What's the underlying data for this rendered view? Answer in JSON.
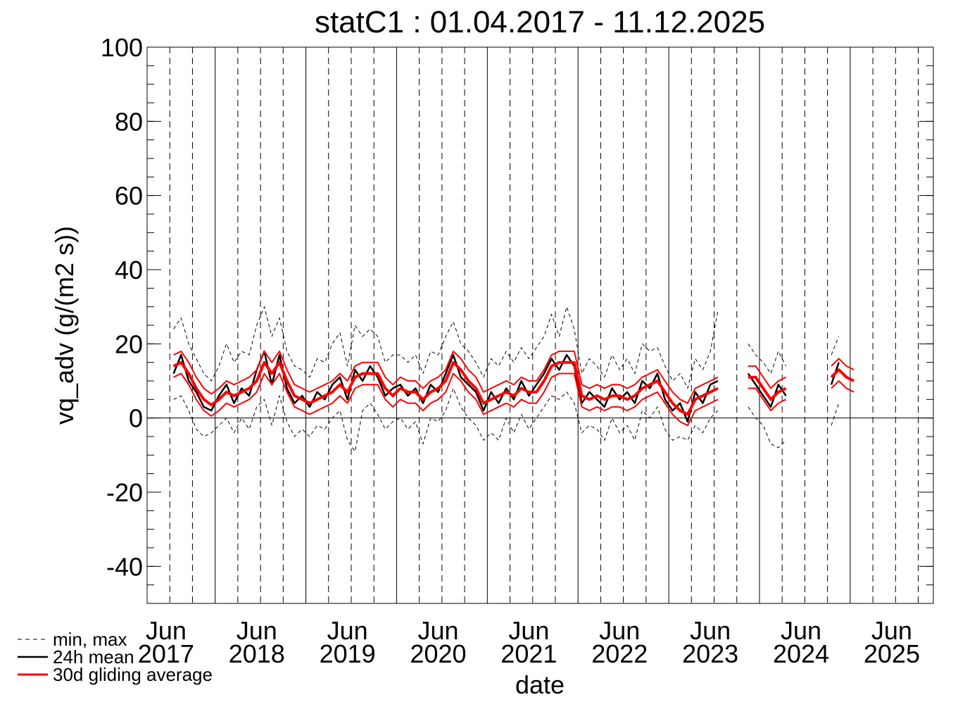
{
  "chart_data": {
    "type": "line",
    "title": "statC1 : 01.04.2017 - 11.12.2025",
    "xlabel": "date",
    "ylabel": "vq_adv (g/(m2 s))",
    "xlim": [
      "2017-04",
      "2025-12"
    ],
    "ylim": [
      -50,
      100
    ],
    "yticks": [
      -40,
      -20,
      0,
      20,
      40,
      60,
      80,
      100
    ],
    "xticks": [
      {
        "value": "2017-06",
        "label": "Jun 2017"
      },
      {
        "value": "2018-06",
        "label": "Jun 2018"
      },
      {
        "value": "2019-06",
        "label": "Jun 2019"
      },
      {
        "value": "2020-06",
        "label": "Jun 2020"
      },
      {
        "value": "2021-06",
        "label": "Jun 2021"
      },
      {
        "value": "2022-06",
        "label": "Jun 2022"
      },
      {
        "value": "2023-06",
        "label": "Jun 2023"
      },
      {
        "value": "2024-06",
        "label": "Jun 2024"
      },
      {
        "value": "2025-06",
        "label": "Jun 2025"
      }
    ],
    "grid": true,
    "legend": "bottom-left",
    "x": [
      "2017-04",
      "2017-05",
      "2017-06",
      "2017-07",
      "2017-08",
      "2017-09",
      "2017-10",
      "2017-11",
      "2017-12",
      "2018-01",
      "2018-02",
      "2018-03",
      "2018-04",
      "2018-05",
      "2018-06",
      "2018-07",
      "2018-08",
      "2018-09",
      "2018-10",
      "2018-11",
      "2018-12",
      "2019-01",
      "2019-02",
      "2019-03",
      "2019-04",
      "2019-05",
      "2019-06",
      "2019-07",
      "2019-08",
      "2019-09",
      "2019-10",
      "2019-11",
      "2019-12",
      "2020-01",
      "2020-02",
      "2020-03",
      "2020-04",
      "2020-05",
      "2020-06",
      "2020-07",
      "2020-08",
      "2020-09",
      "2020-10",
      "2020-11",
      "2020-12",
      "2021-01",
      "2021-02",
      "2021-03",
      "2021-04",
      "2021-05",
      "2021-06",
      "2021-07",
      "2021-08",
      "2021-09",
      "2021-10",
      "2021-11",
      "2021-12",
      "2022-01",
      "2022-02",
      "2022-03",
      "2022-04",
      "2022-05",
      "2022-06",
      "2022-07",
      "2022-08",
      "2022-09",
      "2022-10",
      "2022-11",
      "2022-12",
      "2023-01",
      "2023-02",
      "2023-03",
      "2023-04",
      "2023-05",
      "2023-06",
      "2023-07",
      "2023-08",
      "2023-09",
      "2023-10",
      "2023-11",
      "2023-12",
      "2024-01",
      "2024-02",
      "2024-03",
      "2024-04",
      "2024-05",
      "2024-06",
      "2024-07",
      "2024-08",
      "2024-09",
      "2024-10",
      "2024-11",
      "2024-12",
      "2025-01",
      "2025-02",
      "2025-03",
      "2025-04",
      "2025-05",
      "2025-06",
      "2025-07",
      "2025-08",
      "2025-09",
      "2025-10",
      "2025-11",
      "2025-12"
    ],
    "series": [
      {
        "name": "min, max",
        "color": "#000000",
        "style": "dashed",
        "values": [
          null,
          null,
          null,
          5,
          6,
          2,
          -3,
          -5,
          -4,
          -2,
          0,
          -4,
          0,
          -3,
          3,
          5,
          -2,
          6,
          -1,
          -5,
          -3,
          -5,
          -2,
          -3,
          0,
          2,
          -6,
          -9,
          2,
          4,
          1,
          -3,
          -1,
          0,
          -3,
          -1,
          -7,
          0,
          -1,
          2,
          8,
          3,
          0,
          -2,
          -6,
          -4,
          -6,
          0,
          -4,
          1,
          -3,
          0,
          3,
          6,
          5,
          7,
          4,
          -4,
          -2,
          -3,
          -6,
          0,
          -4,
          -2,
          -6,
          2,
          0,
          3,
          -3,
          -6,
          -5,
          -6,
          -2,
          -4,
          0,
          2,
          null,
          null,
          null,
          3,
          0,
          -2,
          -7,
          -8,
          -6,
          null,
          null,
          null,
          null,
          null,
          -2,
          4,
          null,
          null,
          null,
          null,
          null,
          null,
          null,
          null,
          null,
          null,
          null,
          null,
          null
        ]
      },
      {
        "color": "#000000",
        "style": "dashed",
        "values": [
          null,
          null,
          null,
          24,
          27,
          20,
          16,
          12,
          10,
          14,
          20,
          15,
          18,
          17,
          25,
          30,
          22,
          27,
          18,
          14,
          13,
          11,
          16,
          15,
          20,
          23,
          14,
          25,
          22,
          24,
          22,
          15,
          17,
          17,
          15,
          17,
          12,
          18,
          17,
          22,
          26,
          20,
          18,
          15,
          11,
          16,
          14,
          18,
          15,
          19,
          16,
          19,
          22,
          28,
          22,
          30,
          24,
          12,
          16,
          14,
          11,
          17,
          13,
          16,
          12,
          20,
          18,
          19,
          14,
          10,
          12,
          8,
          16,
          13,
          18,
          29,
          null,
          null,
          null,
          20,
          17,
          15,
          12,
          18,
          14,
          null,
          null,
          null,
          null,
          null,
          17,
          22,
          null,
          null,
          null,
          null,
          null,
          null,
          null,
          null,
          null,
          null,
          null,
          null,
          null
        ]
      },
      {
        "name": "24h mean",
        "color": "#000000",
        "style": "solid",
        "values": [
          null,
          null,
          null,
          12,
          17,
          10,
          7,
          3,
          2,
          6,
          9,
          4,
          8,
          6,
          13,
          18,
          9,
          17,
          8,
          4,
          6,
          3,
          7,
          5,
          9,
          11,
          5,
          13,
          10,
          14,
          11,
          6,
          8,
          9,
          6,
          8,
          4,
          9,
          7,
          12,
          17,
          11,
          9,
          7,
          2,
          7,
          4,
          8,
          5,
          10,
          6,
          9,
          12,
          16,
          13,
          17,
          14,
          4,
          7,
          5,
          3,
          8,
          5,
          7,
          4,
          10,
          8,
          12,
          5,
          2,
          4,
          -1,
          7,
          4,
          9,
          10,
          null,
          null,
          null,
          12,
          9,
          6,
          3,
          9,
          6,
          null,
          null,
          null,
          null,
          null,
          9,
          15,
          null,
          null,
          null,
          null,
          null,
          null,
          null,
          null,
          null,
          null,
          null,
          null,
          null
        ]
      },
      {
        "color": "#ff0000",
        "style": "band",
        "values": [
          null,
          null,
          null,
          17,
          18,
          15,
          11,
          8,
          6.5,
          8,
          10,
          9,
          10,
          11,
          13,
          18,
          15,
          18,
          13,
          9,
          8,
          7,
          8,
          9,
          10,
          12,
          10,
          14,
          15,
          15,
          15,
          11,
          9,
          11,
          10,
          10,
          8,
          10,
          11,
          13,
          18,
          16,
          13,
          11,
          7,
          8,
          9,
          10,
          9,
          11,
          10,
          10,
          13,
          17,
          18,
          18,
          18,
          9,
          8,
          9,
          8,
          9,
          9,
          8,
          9,
          11,
          12,
          13,
          10,
          7,
          5,
          4,
          8,
          9,
          10,
          11,
          null,
          null,
          null,
          14,
          14,
          11,
          8,
          10,
          11,
          null,
          null,
          null,
          null,
          null,
          14,
          16,
          14,
          13,
          null,
          null,
          null,
          null,
          null,
          null,
          null,
          null,
          null,
          null,
          null
        ]
      },
      {
        "color": "#ff0000",
        "style": "band",
        "values": [
          null,
          null,
          null,
          11,
          12,
          9,
          5,
          2,
          0.5,
          2,
          4,
          3,
          4,
          5,
          7,
          12,
          9,
          12,
          7,
          3,
          2,
          1,
          2,
          3,
          4,
          6,
          4,
          8,
          9,
          9,
          9,
          5,
          3,
          5,
          4,
          4,
          2,
          4,
          5,
          7,
          12,
          10,
          7,
          5,
          1,
          2,
          3,
          4,
          3,
          5,
          4,
          4,
          7,
          11,
          12,
          12,
          12,
          3,
          2,
          3,
          2,
          3,
          3,
          2,
          3,
          5,
          6,
          7,
          4,
          1,
          -1,
          -2,
          2,
          3,
          4,
          5,
          null,
          null,
          null,
          8,
          8,
          5,
          2,
          4,
          5,
          null,
          null,
          null,
          null,
          null,
          8,
          10,
          8,
          7,
          null,
          null,
          null,
          null,
          null,
          null,
          null,
          null,
          null,
          null,
          null
        ]
      },
      {
        "name": "30d gliding average",
        "color": "#ff0000",
        "style": "thick",
        "values": [
          null,
          null,
          null,
          14,
          15,
          12,
          8,
          5,
          3.5,
          5,
          7,
          6,
          7,
          8,
          10,
          15,
          12,
          15,
          10,
          6,
          5,
          4,
          5,
          6,
          7,
          9,
          7,
          11,
          12,
          12,
          12,
          8,
          6,
          8,
          7,
          7,
          5,
          7,
          8,
          10,
          15,
          13,
          10,
          8,
          4,
          5,
          6,
          7,
          6,
          8,
          7,
          7,
          10,
          14,
          15,
          15,
          15,
          6,
          5,
          6,
          5,
          6,
          6,
          5,
          6,
          8,
          9,
          10,
          7,
          4,
          2,
          1,
          5,
          6,
          7,
          8,
          null,
          null,
          null,
          11,
          11,
          8,
          5,
          7,
          8,
          null,
          null,
          null,
          null,
          null,
          11,
          13,
          11,
          10,
          null,
          null,
          null,
          null,
          null,
          null,
          null,
          null,
          null,
          null,
          null
        ]
      }
    ]
  }
}
